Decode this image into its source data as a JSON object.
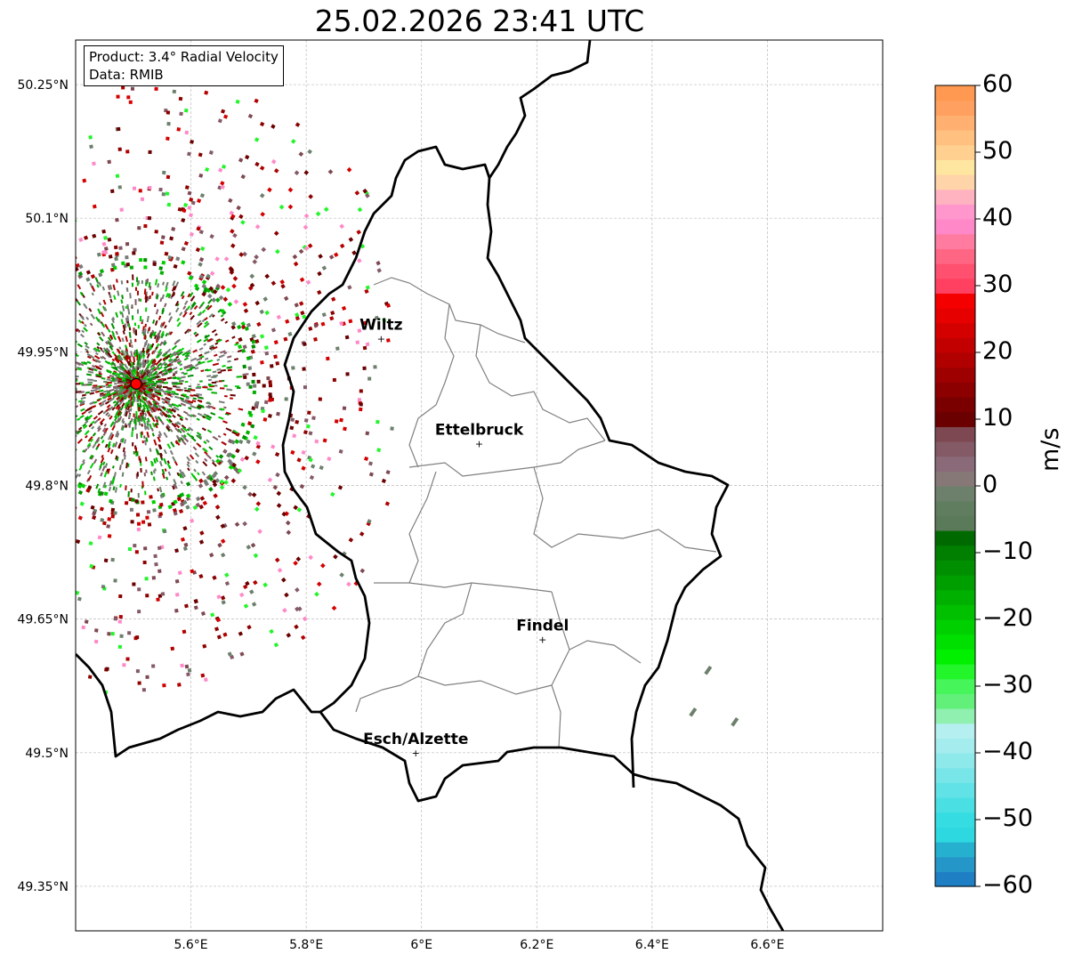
{
  "title": "25.02.2026 23:41 UTC",
  "info": {
    "product": "Product: 3.4° Radial Velocity",
    "data": "Data: RMIB"
  },
  "axes": {
    "lon_ticks": [
      {
        "value": 5.6,
        "label": "5.6°E"
      },
      {
        "value": 5.8,
        "label": "5.8°E"
      },
      {
        "value": 6.0,
        "label": "6°E"
      },
      {
        "value": 6.2,
        "label": "6.2°E"
      },
      {
        "value": 6.4,
        "label": "6.4°E"
      },
      {
        "value": 6.6,
        "label": "6.6°E"
      }
    ],
    "lat_ticks": [
      {
        "value": 50.25,
        "label": "50.25°N"
      },
      {
        "value": 50.1,
        "label": "50.1°N"
      },
      {
        "value": 49.95,
        "label": "49.95°N"
      },
      {
        "value": 49.8,
        "label": "49.8°N"
      },
      {
        "value": 49.65,
        "label": "49.65°N"
      },
      {
        "value": 49.5,
        "label": "49.5°N"
      },
      {
        "value": 49.35,
        "label": "49.35°N"
      }
    ],
    "lon_range": [
      5.4,
      6.8
    ],
    "lat_range": [
      49.3,
      50.3
    ]
  },
  "cities": [
    {
      "name": "Wiltz",
      "lon": 5.93,
      "lat": 49.965
    },
    {
      "name": "Ettelbruck",
      "lon": 6.1,
      "lat": 49.847
    },
    {
      "name": "Findel",
      "lon": 6.21,
      "lat": 49.627
    },
    {
      "name": "Esch/Alzette",
      "lon": 5.99,
      "lat": 49.5
    }
  ],
  "radar_site": {
    "lon": 5.505,
    "lat": 49.914,
    "color": "#ff0000"
  },
  "colorbar": {
    "label": "m/s",
    "min": -60,
    "max": 60,
    "ticks": [
      {
        "v": 60,
        "t": "60"
      },
      {
        "v": 50,
        "t": "50"
      },
      {
        "v": 40,
        "t": "40"
      },
      {
        "v": 30,
        "t": "30"
      },
      {
        "v": 20,
        "t": "20"
      },
      {
        "v": 10,
        "t": "10"
      },
      {
        "v": 0,
        "t": "0"
      },
      {
        "v": -10,
        "t": "−10"
      },
      {
        "v": -20,
        "t": "−20"
      },
      {
        "v": -30,
        "t": "−30"
      },
      {
        "v": -40,
        "t": "−40"
      },
      {
        "v": -50,
        "t": "−50"
      },
      {
        "v": -60,
        "t": "−60"
      }
    ],
    "colors": [
      "#1f7fc4",
      "#2596c8",
      "#26b0cf",
      "#2ed8e0",
      "#35dde2",
      "#4ae0e3",
      "#60e2e6",
      "#78e6e8",
      "#8ee9eb",
      "#a4ecee",
      "#b5eff0",
      "#8ff0b0",
      "#62f07a",
      "#45f55a",
      "#22f52a",
      "#00f000",
      "#00e000",
      "#00d000",
      "#00c000",
      "#00b000",
      "#009f00",
      "#008f00",
      "#007f00",
      "#006a00",
      "#5a7a5a",
      "#607d60",
      "#6c806c",
      "#877878",
      "#8a6a78",
      "#845a66",
      "#7e4852",
      "#6a0000",
      "#7a0000",
      "#8c0000",
      "#9e0000",
      "#b00000",
      "#c20000",
      "#d40000",
      "#e60000",
      "#f50000",
      "#ff4060",
      "#ff5070",
      "#ff6684",
      "#ff7ca0",
      "#ff88c8",
      "#ff96cc",
      "#ffb2c0",
      "#ffd4a8",
      "#ffe6a0",
      "#ffd090",
      "#ffc080",
      "#ffb070",
      "#ffa060",
      "#ff9850"
    ]
  }
}
